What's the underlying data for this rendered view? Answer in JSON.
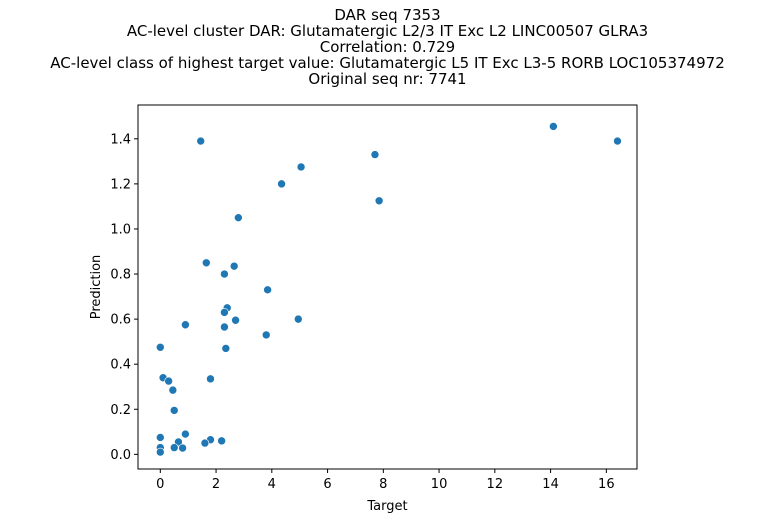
{
  "chart_data": {
    "type": "scatter",
    "title_lines": [
      "DAR seq 7353",
      "AC-level cluster DAR: Glutamatergic L2/3 IT Exc L2 LINC00507 GLRA3",
      "Correlation: 0.729",
      "AC-level class of highest target value: Glutamatergic L5 IT Exc L3-5 RORB LOC105374972",
      "Original seq nr: 7741"
    ],
    "xlabel": "Target",
    "ylabel": "Prediction",
    "xlim": [
      -0.8,
      17.1
    ],
    "ylim": [
      -0.065,
      1.55
    ],
    "xticks": [
      0,
      2,
      4,
      6,
      8,
      10,
      12,
      14,
      16
    ],
    "xtick_labels": [
      "0",
      "2",
      "4",
      "6",
      "8",
      "10",
      "12",
      "14",
      "16"
    ],
    "yticks": [
      0.0,
      0.2,
      0.4,
      0.6,
      0.8,
      1.0,
      1.2,
      1.4
    ],
    "ytick_labels": [
      "0.0",
      "0.2",
      "0.4",
      "0.6",
      "0.8",
      "1.0",
      "1.2",
      "1.4"
    ],
    "marker_color": "#1f77b4",
    "grid": false,
    "points": [
      [
        14.1,
        1.455
      ],
      [
        16.4,
        1.39
      ],
      [
        1.45,
        1.39
      ],
      [
        7.7,
        1.33
      ],
      [
        5.05,
        1.275
      ],
      [
        4.35,
        1.2
      ],
      [
        7.85,
        1.125
      ],
      [
        2.8,
        1.05
      ],
      [
        1.65,
        0.85
      ],
      [
        2.65,
        0.835
      ],
      [
        2.3,
        0.8
      ],
      [
        3.85,
        0.73
      ],
      [
        2.4,
        0.65
      ],
      [
        2.3,
        0.63
      ],
      [
        2.7,
        0.595
      ],
      [
        4.95,
        0.6
      ],
      [
        0.9,
        0.575
      ],
      [
        2.3,
        0.565
      ],
      [
        3.8,
        0.53
      ],
      [
        0.0,
        0.475
      ],
      [
        2.35,
        0.47
      ],
      [
        0.1,
        0.34
      ],
      [
        1.8,
        0.335
      ],
      [
        0.3,
        0.325
      ],
      [
        0.45,
        0.285
      ],
      [
        0.5,
        0.195
      ],
      [
        0.9,
        0.09
      ],
      [
        0.0,
        0.075
      ],
      [
        1.8,
        0.065
      ],
      [
        2.2,
        0.06
      ],
      [
        0.65,
        0.055
      ],
      [
        1.6,
        0.05
      ],
      [
        0.0,
        0.03
      ],
      [
        0.5,
        0.03
      ],
      [
        0.8,
        0.028
      ],
      [
        0.0,
        0.01
      ]
    ]
  }
}
